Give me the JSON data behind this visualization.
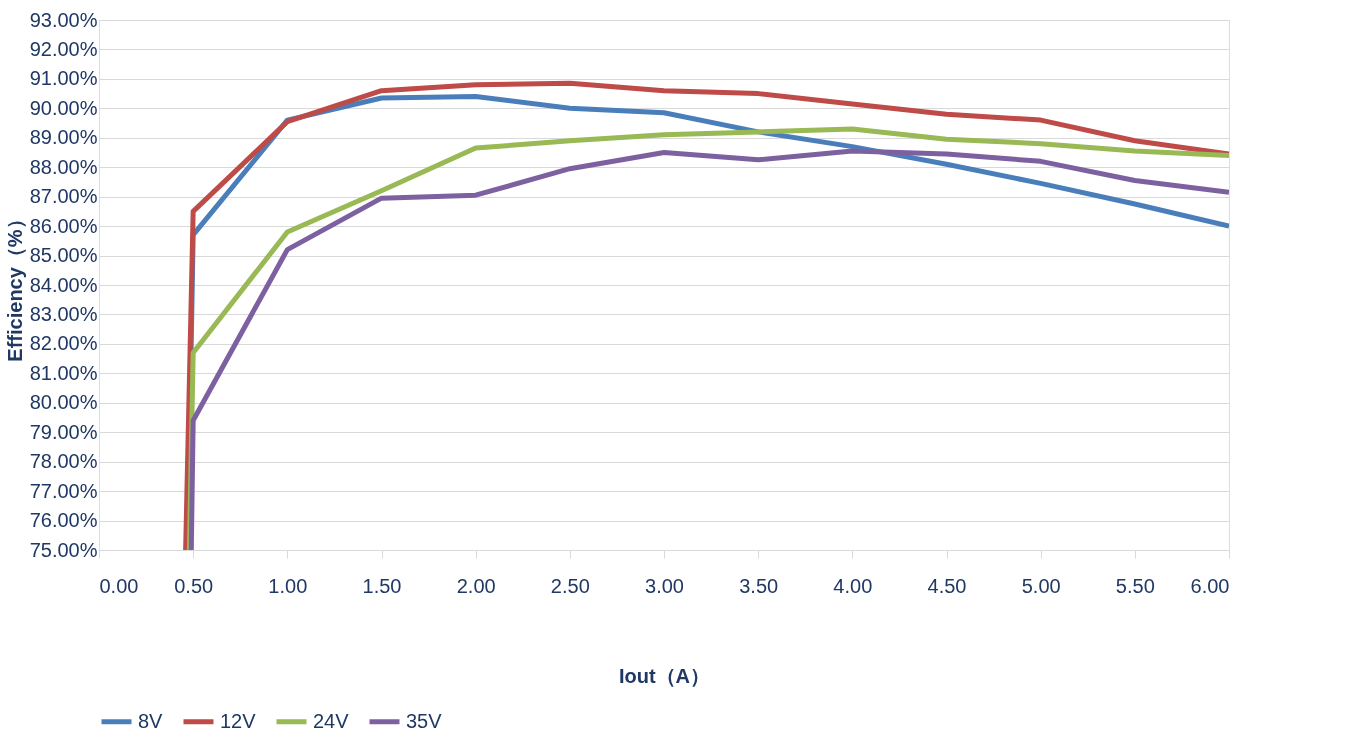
{
  "chart_data": {
    "type": "line",
    "xlabel": "Iout（A）",
    "ylabel": "Efficiency（%）",
    "xlim": [
      0,
      6
    ],
    "xticks": [
      {
        "value": 0,
        "label": "0.00"
      },
      {
        "value": 0.5,
        "label": "0.50"
      },
      {
        "value": 1,
        "label": "1.00"
      },
      {
        "value": 1.5,
        "label": "1.50"
      },
      {
        "value": 2,
        "label": "2.00"
      },
      {
        "value": 2.5,
        "label": "2.50"
      },
      {
        "value": 3,
        "label": "3.00"
      },
      {
        "value": 3.5,
        "label": "3.50"
      },
      {
        "value": 4,
        "label": "4.00"
      },
      {
        "value": 4.5,
        "label": "4.50"
      },
      {
        "value": 5,
        "label": "5.00"
      },
      {
        "value": 5.5,
        "label": "5.50"
      },
      {
        "value": 6,
        "label": "6.00"
      }
    ],
    "ylim": [
      75,
      93
    ],
    "yticks": [
      {
        "value": 75,
        "label": "75.00%"
      },
      {
        "value": 76,
        "label": "76.00%"
      },
      {
        "value": 77,
        "label": "77.00%"
      },
      {
        "value": 78,
        "label": "78.00%"
      },
      {
        "value": 79,
        "label": "79.00%"
      },
      {
        "value": 80,
        "label": "80.00%"
      },
      {
        "value": 81,
        "label": "81.00%"
      },
      {
        "value": 82,
        "label": "82.00%"
      },
      {
        "value": 83,
        "label": "83.00%"
      },
      {
        "value": 84,
        "label": "84.00%"
      },
      {
        "value": 85,
        "label": "85.00%"
      },
      {
        "value": 86,
        "label": "86.00%"
      },
      {
        "value": 87,
        "label": "87.00%"
      },
      {
        "value": 88,
        "label": "88.00%"
      },
      {
        "value": 89,
        "label": "89.00%"
      },
      {
        "value": 90,
        "label": "90.00%"
      },
      {
        "value": 91,
        "label": "91.00%"
      },
      {
        "value": 92,
        "label": "92.00%"
      },
      {
        "value": 93,
        "label": "93.00%"
      }
    ],
    "grid": "y",
    "legend": "bottom",
    "marker": "none",
    "line_style": "solid",
    "series": [
      {
        "name": "8V",
        "color": "#4a7ebb",
        "x": [
          0.47,
          0.5,
          1,
          1.5,
          2,
          2.5,
          3,
          3.5,
          4,
          4.5,
          5,
          5.5,
          6
        ],
        "values": [
          75,
          85.7,
          89.6,
          90.35,
          90.4,
          90.0,
          89.85,
          89.2,
          88.7,
          88.1,
          87.45,
          86.75,
          86.0
        ]
      },
      {
        "name": "12V",
        "color": "#be4b48",
        "x": [
          0.46,
          0.5,
          1,
          1.5,
          2,
          2.5,
          3,
          3.5,
          4,
          4.5,
          5,
          5.5,
          6
        ],
        "values": [
          75,
          86.5,
          89.55,
          90.6,
          90.8,
          90.85,
          90.6,
          90.5,
          90.15,
          89.8,
          89.6,
          88.9,
          88.45
        ]
      },
      {
        "name": "24V",
        "color": "#98b954",
        "x": [
          0.48,
          0.5,
          1,
          1.5,
          2,
          2.5,
          3,
          3.5,
          4,
          4.5,
          5,
          5.5,
          6
        ],
        "values": [
          75,
          81.7,
          85.8,
          87.2,
          88.65,
          88.9,
          89.1,
          89.2,
          89.3,
          88.95,
          88.8,
          88.55,
          88.4
        ]
      },
      {
        "name": "35V",
        "color": "#7d60a0",
        "x": [
          0.49,
          0.5,
          1,
          1.5,
          2,
          2.5,
          3,
          3.5,
          4,
          4.5,
          5,
          5.5,
          6
        ],
        "values": [
          75,
          79.4,
          85.2,
          86.95,
          87.05,
          87.95,
          88.5,
          88.25,
          88.55,
          88.45,
          88.2,
          87.55,
          87.15
        ]
      }
    ]
  }
}
